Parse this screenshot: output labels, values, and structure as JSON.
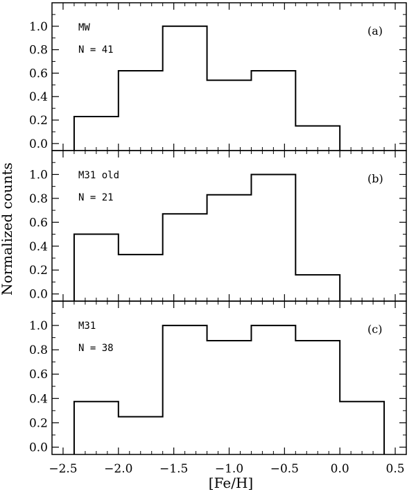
{
  "chart_data": {
    "type": "histogram",
    "xlabel": "[Fe/H]",
    "ylabel": "Normalized counts",
    "xlim": [
      -2.6,
      0.6
    ],
    "x_tick_labels": [
      "−2.5",
      "−2.0",
      "−1.5",
      "−1.0",
      "−0.5",
      "0.0",
      "0.5"
    ],
    "x_ticks": [
      -2.5,
      -2.0,
      -1.5,
      -1.0,
      -0.5,
      0.0,
      0.5
    ],
    "y_ticks": [
      0.0,
      0.2,
      0.4,
      0.6,
      0.8,
      1.0
    ],
    "y_tick_labels": [
      "0.0",
      "0.2",
      "0.4",
      "0.6",
      "0.8",
      "1.0"
    ],
    "ylim": [
      -0.06,
      1.2
    ],
    "grid": false,
    "panels": [
      {
        "tag": "(a)",
        "name": "MW",
        "count_label": "N = 41",
        "bin_edges": [
          -2.4,
          -2.0,
          -1.6,
          -1.2,
          -0.8,
          -0.4,
          0.0
        ],
        "values": [
          0.23,
          0.62,
          1.0,
          0.54,
          0.62,
          0.15
        ]
      },
      {
        "tag": "(b)",
        "name": "M31 old",
        "count_label": "N = 21",
        "bin_edges": [
          -2.4,
          -2.0,
          -1.6,
          -1.2,
          -0.8,
          -0.4,
          0.0
        ],
        "values": [
          0.5,
          0.33,
          0.67,
          0.83,
          1.0,
          0.16
        ]
      },
      {
        "tag": "(c)",
        "name": "M31",
        "count_label": "N = 38",
        "bin_edges": [
          -2.4,
          -2.0,
          -1.6,
          -1.2,
          -0.8,
          -0.4,
          0.0,
          0.4
        ],
        "values": [
          0.375,
          0.25,
          1.0,
          0.875,
          1.0,
          0.875,
          0.375
        ]
      }
    ]
  }
}
